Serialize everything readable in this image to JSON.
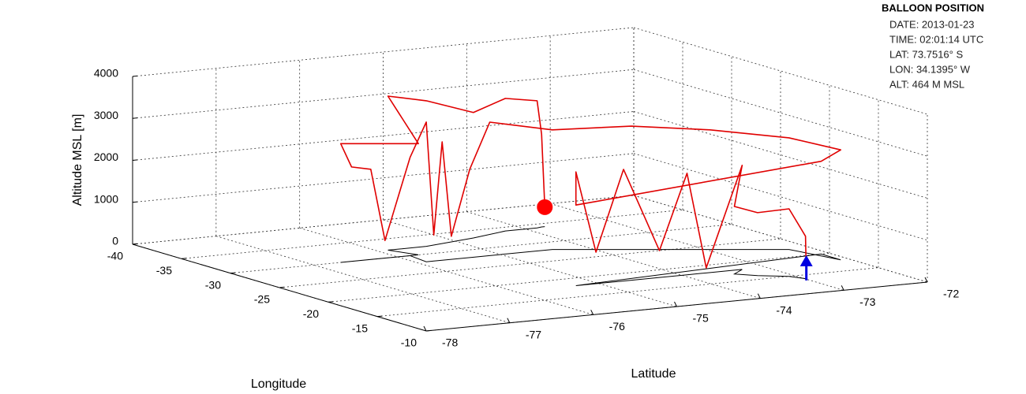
{
  "chart_data": {
    "type": "line3d",
    "xlabel": "Latitude",
    "ylabel": "Longitude",
    "zlabel": "Altitude MSL [m]",
    "xlim": [
      -78,
      -72
    ],
    "xticks": [
      -78,
      -77,
      -76,
      -75,
      -74,
      -73,
      -72
    ],
    "ylim": [
      -40,
      -10
    ],
    "yticks": [
      -40,
      -35,
      -30,
      -25,
      -20,
      -15,
      -10
    ],
    "zlim": [
      0,
      4000
    ],
    "zticks": [
      0,
      1000,
      2000,
      3000,
      4000
    ],
    "grid": true,
    "shadow_color": "#000000",
    "start_marker_color": "#0000e0",
    "current_marker_color": "#ff0000",
    "series": [
      {
        "color": "#e00000",
        "x": [
          -72.98,
          -72.99,
          -73.07,
          -73.33,
          -73.49,
          -73.28,
          -73.71,
          -73.94,
          -74.27,
          -74.7,
          -75.03,
          -75.27,
          -75.27,
          -72.1,
          -72.1,
          -72.25,
          -72.96,
          -73.67,
          -74.38,
          -75.13,
          -75.37,
          -75.59,
          -75.7,
          -75.8,
          -75.89,
          -75.85,
          -76.15,
          -76.32,
          -76.55,
          -76.68,
          -75.75,
          -75.88,
          -75.42,
          -74.74,
          -74.24,
          -73.86,
          -73.79,
          -73.7516
        ],
        "y": [
          -14,
          -14,
          -15,
          -16,
          -17,
          -18,
          -18,
          -18,
          -18,
          -18,
          -18,
          -18,
          -18,
          -20,
          -18,
          -22,
          -24,
          -26,
          -28,
          -28,
          -28,
          -28,
          -28,
          -28,
          -28,
          -30,
          -30,
          -30,
          -30,
          -30,
          -30,
          -32,
          -32,
          -33,
          -34,
          -34,
          -34.14,
          -34.1395
        ],
        "z": [
          30,
          1010,
          1610,
          1500,
          1610,
          2480,
          120,
          2420,
          640,
          2660,
          750,
          2710,
          1920,
          2210,
          2620,
          2660,
          2850,
          2940,
          2850,
          3180,
          2100,
          550,
          2820,
          620,
          3330,
          2340,
          420,
          2150,
          2250,
          2830,
          2650,
          3670,
          3470,
          2990,
          3160,
          3030,
          2210,
          464
        ]
      }
    ]
  },
  "info": {
    "title": "BALLOON POSITION",
    "lines": [
      "DATE: 2013-01-23",
      "TIME: 02:01:14 UTC",
      "LAT:  73.7516° S",
      "LON:  34.1395° W",
      "ALT:  464 M MSL"
    ]
  }
}
